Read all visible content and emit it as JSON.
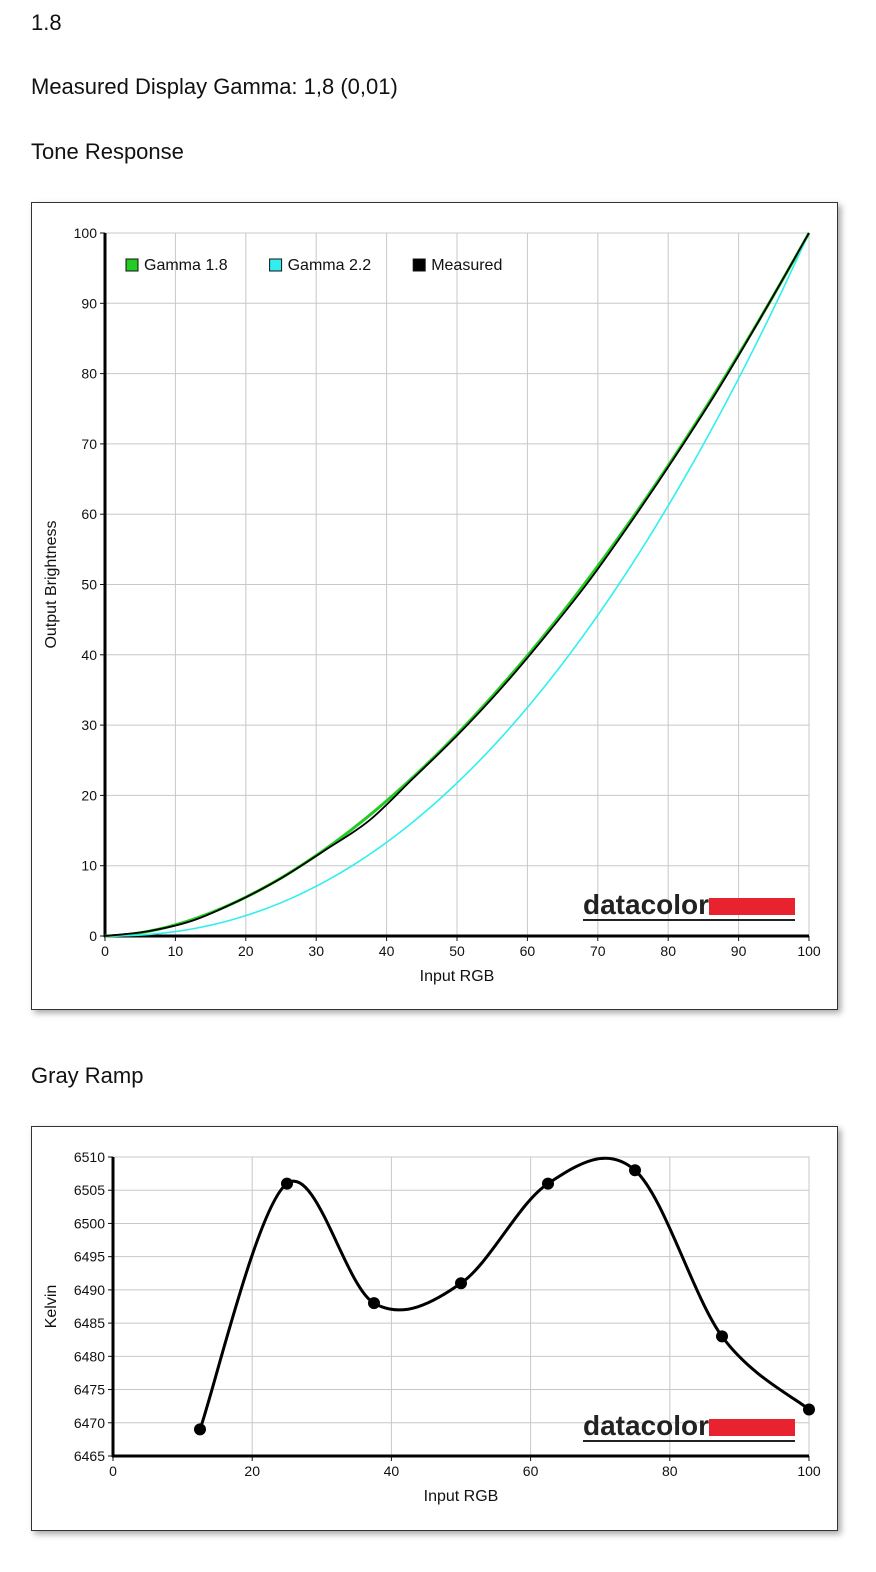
{
  "page": {
    "top_value": "1.8",
    "gamma_text": "Measured Display Gamma: 1,8 (0,01)",
    "tone_heading": "Tone Response",
    "gray_heading": "Gray Ramp"
  },
  "chart_data": [
    {
      "type": "line",
      "name": "tone-response",
      "xlabel": "Input RGB",
      "ylabel": "Output Brightness",
      "xlim": [
        0,
        100
      ],
      "ylim": [
        0,
        100
      ],
      "xticks": [
        0,
        10,
        20,
        30,
        40,
        50,
        60,
        70,
        80,
        90,
        100
      ],
      "yticks": [
        0,
        10,
        20,
        30,
        40,
        50,
        60,
        70,
        80,
        90,
        100
      ],
      "grid": true,
      "legend_position": "top-left",
      "logo": "datacolor",
      "series": [
        {
          "name": "Gamma 1.8",
          "color": "#22cc22",
          "kind": "gamma",
          "gamma": 1.8
        },
        {
          "name": "Gamma 2.2",
          "color": "#33eeee",
          "kind": "gamma",
          "gamma": 2.2
        },
        {
          "name": "Measured",
          "color": "#000000",
          "kind": "points",
          "x": [
            0,
            6.25,
            12.5,
            18.75,
            25,
            31.25,
            37.5,
            43.75,
            50,
            56.25,
            62.5,
            68.75,
            75,
            81.25,
            87.5,
            93.75,
            100
          ],
          "y": [
            0,
            0.7,
            2.2,
            4.9,
            8.2,
            12.2,
            16.4,
            22.4,
            28.5,
            35.2,
            42.6,
            50.5,
            59.3,
            68.6,
            78.4,
            89,
            100
          ]
        }
      ]
    },
    {
      "type": "line",
      "name": "gray-ramp",
      "xlabel": "Input RGB",
      "ylabel": "Kelvin",
      "xlim": [
        0,
        100
      ],
      "ylim": [
        6465,
        6510
      ],
      "xticks": [
        0,
        20,
        40,
        60,
        80,
        100
      ],
      "yticks": [
        6465,
        6470,
        6475,
        6480,
        6485,
        6490,
        6495,
        6500,
        6505,
        6510
      ],
      "grid": true,
      "logo": "datacolor",
      "series": [
        {
          "color": "#000000",
          "kind": "points",
          "x": [
            12.5,
            25,
            37.5,
            50,
            62.5,
            75,
            87.5,
            100
          ],
          "y": [
            6469,
            6506,
            6488,
            6491,
            6506,
            6508,
            6483,
            6472
          ]
        }
      ]
    }
  ]
}
